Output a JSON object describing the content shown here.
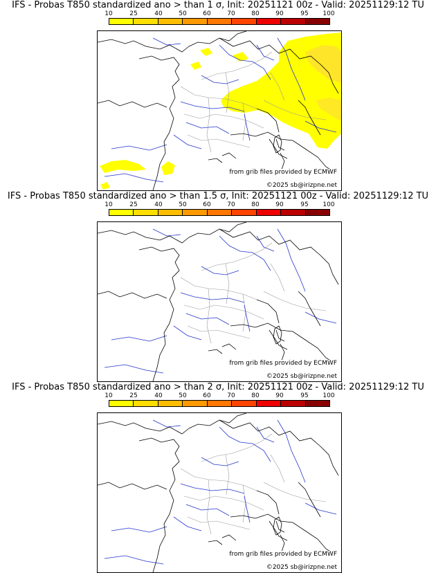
{
  "colorbar": {
    "ticks": [
      "10",
      "25",
      "40",
      "50",
      "60",
      "70",
      "80",
      "90",
      "95",
      "100"
    ],
    "colors": [
      "#ffff00",
      "#ffde00",
      "#ffbd00",
      "#ff9900",
      "#ff7700",
      "#ff4400",
      "#ee0000",
      "#bb0000",
      "#880000"
    ]
  },
  "panels": [
    {
      "title": "IFS - Probas T850  standardized ano > than 1 σ, Init: 20251121 00z - Valid: 20251129:12 TU",
      "credit_source": "from grib files provided by ECMWF",
      "credit_copyright": "©2025 sb@irizpne.net",
      "has_anomaly": true
    },
    {
      "title": "IFS - Probas T850  standardized ano > than 1.5 σ, Init: 20251121 00z - Valid: 20251129:12 TU",
      "credit_source": "from grib files provided by ECMWF",
      "credit_copyright": "©2025 sb@irizpne.net",
      "has_anomaly": false
    },
    {
      "title": "IFS - Probas T850  standardized ano > than 2 σ, Init: 20251121 00z - Valid: 20251129:12 TU",
      "credit_source": "from grib files provided by ECMWF",
      "credit_copyright": "©2025 sb@irizpne.net",
      "has_anomaly": false
    }
  ],
  "colors": {
    "coast": "#000000",
    "river": "#2233cc",
    "border": "#999999",
    "fill_low": "#ffff00",
    "fill_mid": "#ffde33"
  }
}
